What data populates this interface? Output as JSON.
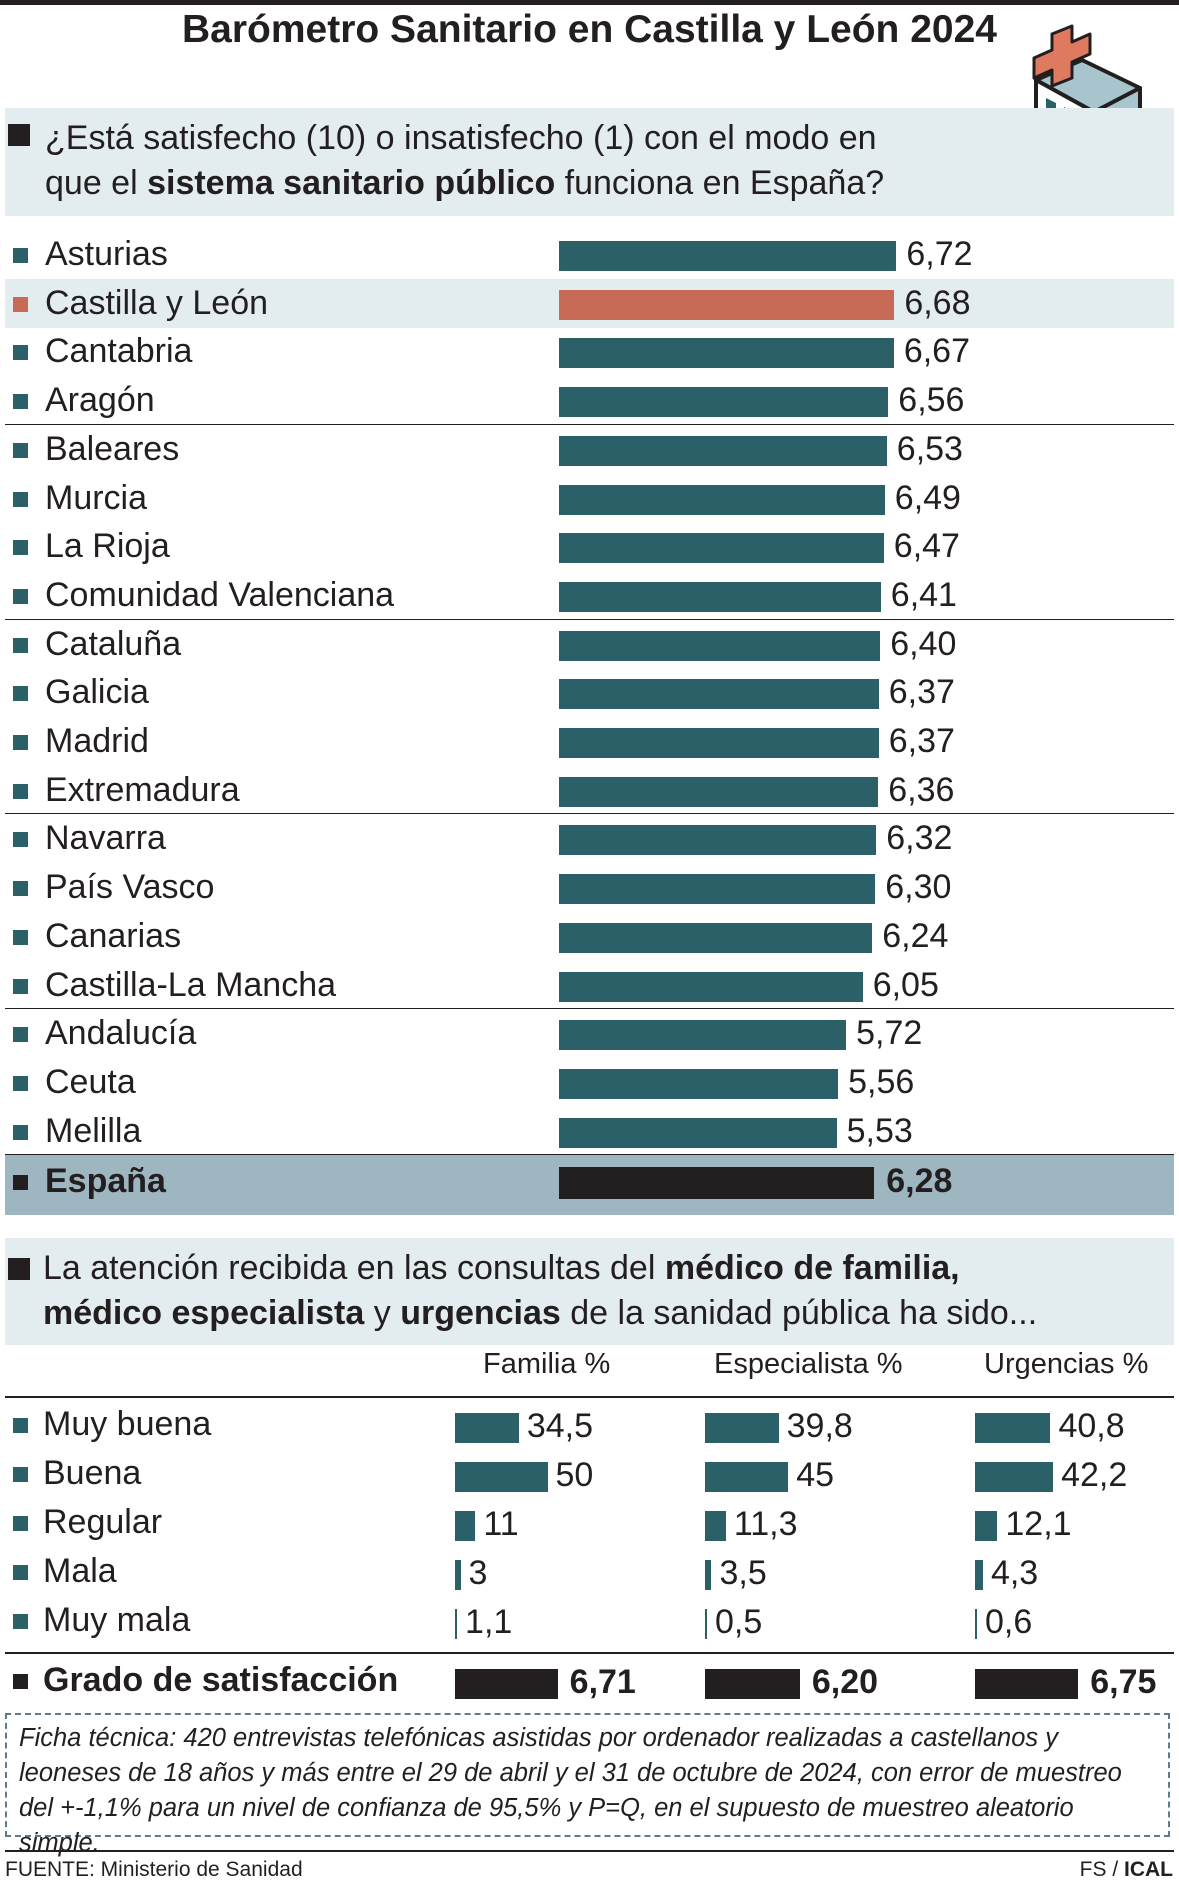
{
  "title": "Barómetro Sanitario en Castilla y León 2024",
  "colors": {
    "bar": "#2b6069",
    "highlight_bar": "#c76a56",
    "total_bar": "#231f20"
  },
  "icons": {
    "header": "hospital-building-icon"
  },
  "chart_data": [
    {
      "type": "bar",
      "orientation": "horizontal",
      "question": {
        "part1": "¿Está satisfecho (10) o insatisfecho (1) con el modo en que el ",
        "bold": "sistema sanitario público",
        "part2": " funciona en España?"
      },
      "xlim": [
        0,
        10
      ],
      "categories": [
        "Asturias",
        "Castilla y León",
        "Cantabria",
        "Aragón",
        "Baleares",
        "Murcia",
        "La Rioja",
        "Comunidad Valenciana",
        "Cataluña",
        "Galicia",
        "Madrid",
        "Extremadura",
        "Navarra",
        "País Vasco",
        "Canarias",
        "Castilla-La Mancha",
        "Andalucía",
        "Ceuta",
        "Melilla"
      ],
      "values": [
        6.72,
        6.68,
        6.67,
        6.56,
        6.53,
        6.49,
        6.47,
        6.41,
        6.4,
        6.37,
        6.37,
        6.36,
        6.32,
        6.3,
        6.24,
        6.05,
        5.72,
        5.56,
        5.53
      ],
      "value_labels": [
        "6,72",
        "6,68",
        "6,67",
        "6,56",
        "6,53",
        "6,49",
        "6,47",
        "6,41",
        "6,40",
        "6,37",
        "6,37",
        "6,36",
        "6,32",
        "6,30",
        "6,24",
        "6,05",
        "5,72",
        "5,56",
        "5,53"
      ],
      "highlight": "Castilla y León",
      "total": {
        "label": "España",
        "value": 6.28,
        "value_label": "6,28"
      }
    },
    {
      "type": "bar",
      "orientation": "horizontal",
      "question": {
        "part1": "La atención recibida en las consultas del ",
        "bold1": "médico de familia, médico especialista",
        "part2": " y ",
        "bold2": "urgencias",
        "part3": " de la sanidad pública ha sido..."
      },
      "xlim": [
        0,
        100
      ],
      "categories": [
        "Muy buena",
        "Buena",
        "Regular",
        "Mala",
        "Muy mala"
      ],
      "series": [
        {
          "name": "Familia %",
          "values": [
            34.5,
            50,
            11,
            3,
            1.1
          ],
          "value_labels": [
            "34,5",
            "50",
            "11",
            "3",
            "1,1"
          ]
        },
        {
          "name": "Especialista %",
          "values": [
            39.8,
            45,
            11.3,
            3.5,
            0.5
          ],
          "value_labels": [
            "39,8",
            "45",
            "11,3",
            "3,5",
            "0,5"
          ]
        },
        {
          "name": "Urgencias %",
          "values": [
            40.8,
            42.2,
            12.1,
            4.3,
            0.6
          ],
          "value_labels": [
            "40,8",
            "42,2",
            "12,1",
            "4,3",
            "0,6"
          ]
        }
      ],
      "satisfaction": {
        "label": "Grado de satisfacción",
        "values": [
          6.71,
          6.2,
          6.75
        ],
        "value_labels": [
          "6,71",
          "6,20",
          "6,75"
        ]
      }
    }
  ],
  "ficha": "Ficha técnica: 420 entrevistas telefónicas asistidas por ordenador realizadas a castellanos y leoneses de 18 años y más entre el 29 de abril y el 31 de octubre de 2024, con error de muestreo del +-1,1% para un nivel de confianza de 95,5% y P=Q, en el supuesto de muestreo aleatorio simple.",
  "source": "FUENTE: Ministerio de Sanidad",
  "credit": {
    "prefix": "FS / ",
    "brand": "ICAL"
  }
}
